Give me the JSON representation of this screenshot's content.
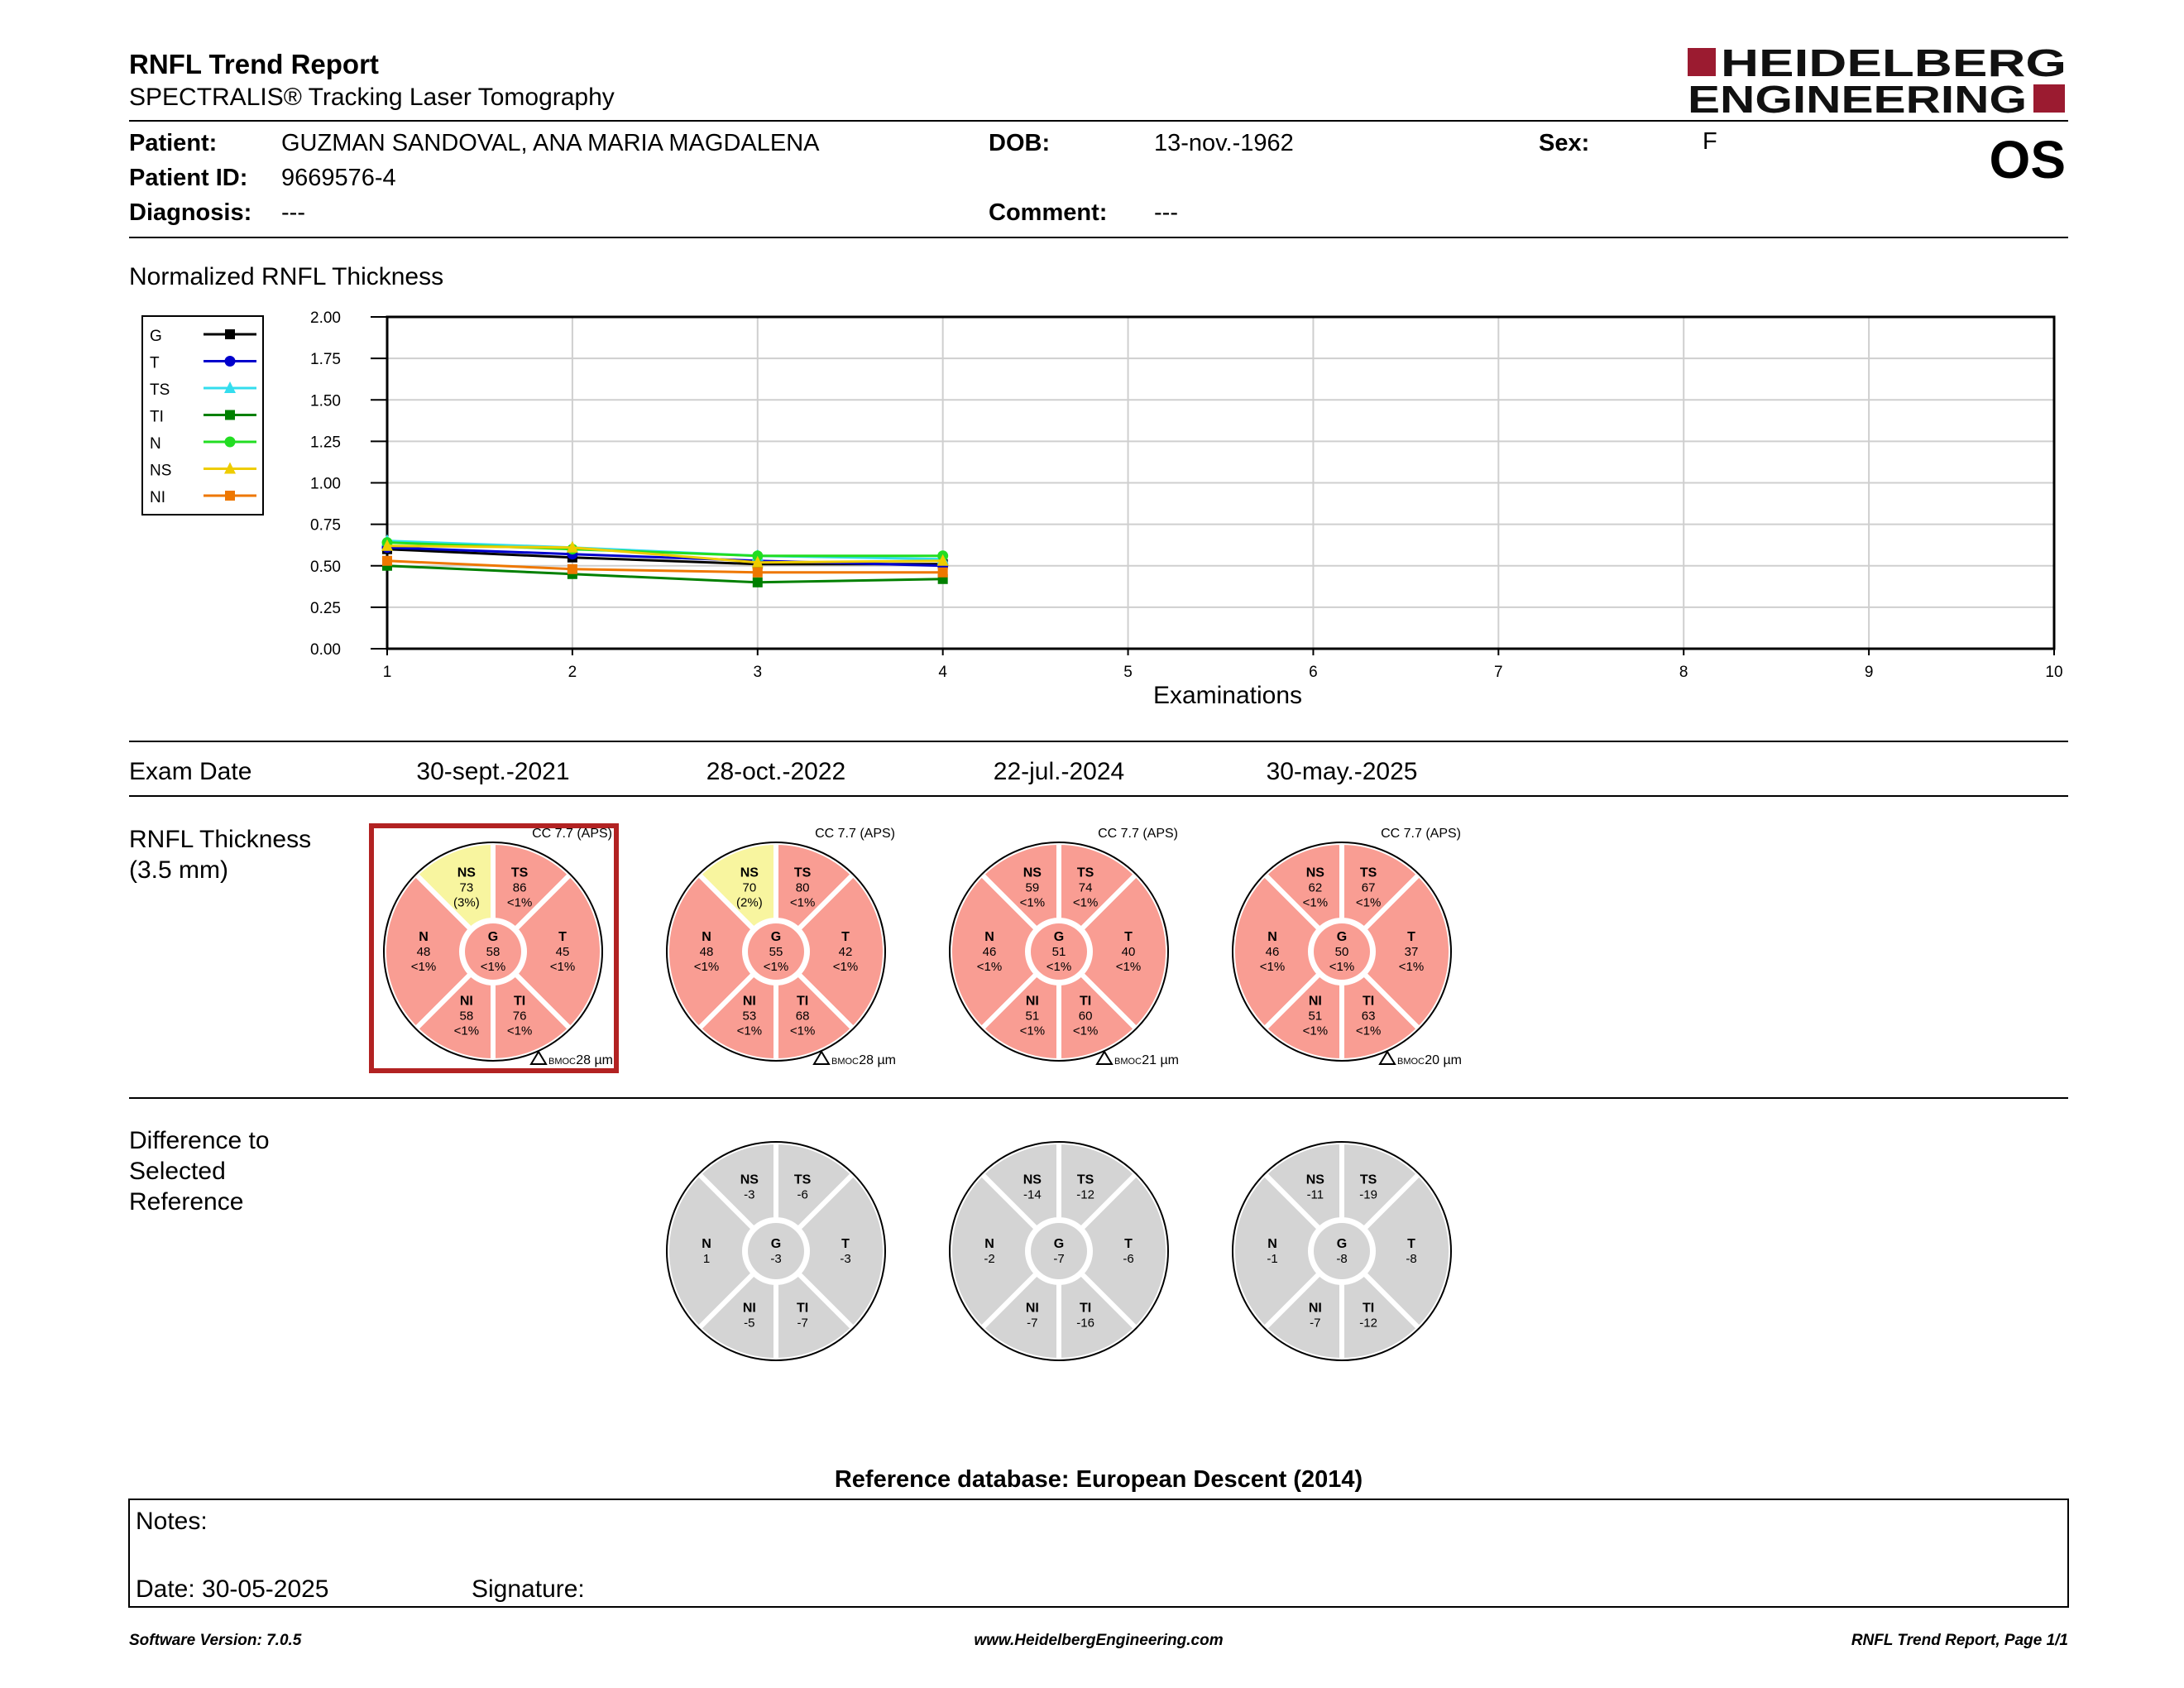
{
  "report": {
    "title": "RNFL Trend Report",
    "subtitle": "SPECTRALIS® Tracking Laser Tomography",
    "eye": "OS"
  },
  "logo": {
    "line1": "HEIDELBERG",
    "line2": "ENGINEERING",
    "color": "#9b1b30"
  },
  "patient": {
    "patient_label": "Patient:",
    "patient_value": "GUZMAN SANDOVAL, ANA MARIA MAGDALENA",
    "dob_label": "DOB:",
    "dob_value": "13-nov.-1962",
    "sex_label": "Sex:",
    "sex_value": "F",
    "id_label": "Patient ID:",
    "id_value": "9669576-4",
    "diagnosis_label": "Diagnosis:",
    "diagnosis_value": "---",
    "comment_label": "Comment:",
    "comment_value": "---"
  },
  "trend": {
    "section_title": "Normalized RNFL Thickness"
  },
  "chart_data": {
    "type": "line",
    "xlabel": "Examinations",
    "ylabel": "",
    "x_ticks": [
      1,
      2,
      3,
      4,
      5,
      6,
      7,
      8,
      9,
      10
    ],
    "y_ticks": [
      "0.00",
      "0.25",
      "0.50",
      "0.75",
      "1.00",
      "1.25",
      "1.50",
      "1.75",
      "2.00"
    ],
    "xlim": [
      1,
      10
    ],
    "ylim": [
      0,
      2
    ],
    "grid": true,
    "legend_position": "left",
    "x": [
      1,
      2,
      3,
      4
    ],
    "series": [
      {
        "name": "G",
        "color": "#000000",
        "marker": "square",
        "values": [
          0.6,
          0.55,
          0.51,
          0.51
        ]
      },
      {
        "name": "T",
        "color": "#0000cc",
        "marker": "circle",
        "values": [
          0.61,
          0.57,
          0.53,
          0.5
        ]
      },
      {
        "name": "TS",
        "color": "#33ddee",
        "marker": "triangle",
        "values": [
          0.65,
          0.61,
          0.56,
          0.54
        ]
      },
      {
        "name": "TI",
        "color": "#008000",
        "marker": "square",
        "values": [
          0.5,
          0.45,
          0.4,
          0.42
        ]
      },
      {
        "name": "N",
        "color": "#22dd22",
        "marker": "circle",
        "values": [
          0.64,
          0.6,
          0.56,
          0.56
        ]
      },
      {
        "name": "NS",
        "color": "#eecc00",
        "marker": "triangle",
        "values": [
          0.62,
          0.61,
          0.52,
          0.53
        ]
      },
      {
        "name": "NI",
        "color": "#ee7700",
        "marker": "square",
        "values": [
          0.53,
          0.48,
          0.46,
          0.46
        ]
      }
    ]
  },
  "exams": {
    "header_label": "Exam Date",
    "dates": [
      "30-sept.-2021",
      "28-oct.-2022",
      "22-jul.-2024",
      "30-may.-2025"
    ]
  },
  "thickness": {
    "label_line1": "RNFL Thickness",
    "label_line2": "(3.5 mm)",
    "circles": [
      {
        "cc": "CC 7.7 (APS)",
        "bmo": "28 µm",
        "selected": true,
        "G": {
          "v": "58",
          "p": "<1%",
          "c": "red"
        },
        "NS": {
          "v": "73",
          "p": "(3%)",
          "c": "yellow"
        },
        "TS": {
          "v": "86",
          "p": "<1%",
          "c": "red"
        },
        "T": {
          "v": "45",
          "p": "<1%",
          "c": "red"
        },
        "TI": {
          "v": "76",
          "p": "<1%",
          "c": "red"
        },
        "NI": {
          "v": "58",
          "p": "<1%",
          "c": "red"
        },
        "N": {
          "v": "48",
          "p": "<1%",
          "c": "red"
        }
      },
      {
        "cc": "CC 7.7 (APS)",
        "bmo": "28 µm",
        "selected": false,
        "G": {
          "v": "55",
          "p": "<1%",
          "c": "red"
        },
        "NS": {
          "v": "70",
          "p": "(2%)",
          "c": "yellow"
        },
        "TS": {
          "v": "80",
          "p": "<1%",
          "c": "red"
        },
        "T": {
          "v": "42",
          "p": "<1%",
          "c": "red"
        },
        "TI": {
          "v": "68",
          "p": "<1%",
          "c": "red"
        },
        "NI": {
          "v": "53",
          "p": "<1%",
          "c": "red"
        },
        "N": {
          "v": "48",
          "p": "<1%",
          "c": "red"
        }
      },
      {
        "cc": "CC 7.7 (APS)",
        "bmo": "21 µm",
        "selected": false,
        "G": {
          "v": "51",
          "p": "<1%",
          "c": "red"
        },
        "NS": {
          "v": "59",
          "p": "<1%",
          "c": "red"
        },
        "TS": {
          "v": "74",
          "p": "<1%",
          "c": "red"
        },
        "T": {
          "v": "40",
          "p": "<1%",
          "c": "red"
        },
        "TI": {
          "v": "60",
          "p": "<1%",
          "c": "red"
        },
        "NI": {
          "v": "51",
          "p": "<1%",
          "c": "red"
        },
        "N": {
          "v": "46",
          "p": "<1%",
          "c": "red"
        }
      },
      {
        "cc": "CC 7.7 (APS)",
        "bmo": "20 µm",
        "selected": false,
        "G": {
          "v": "50",
          "p": "<1%",
          "c": "red"
        },
        "NS": {
          "v": "62",
          "p": "<1%",
          "c": "red"
        },
        "TS": {
          "v": "67",
          "p": "<1%",
          "c": "red"
        },
        "T": {
          "v": "37",
          "p": "<1%",
          "c": "red"
        },
        "TI": {
          "v": "63",
          "p": "<1%",
          "c": "red"
        },
        "NI": {
          "v": "51",
          "p": "<1%",
          "c": "red"
        },
        "N": {
          "v": "46",
          "p": "<1%",
          "c": "red"
        }
      }
    ],
    "bmo_prefix": "BMOC"
  },
  "difference": {
    "label_lines": [
      "Difference to",
      "Selected",
      "Reference"
    ],
    "circles": [
      null,
      {
        "G": "-3",
        "NS": "-3",
        "TS": "-6",
        "T": "-3",
        "TI": "-7",
        "NI": "-5",
        "N": "1"
      },
      {
        "G": "-7",
        "NS": "-14",
        "TS": "-12",
        "T": "-6",
        "TI": "-16",
        "NI": "-7",
        "N": "-2"
      },
      {
        "G": "-8",
        "NS": "-11",
        "TS": "-19",
        "T": "-8",
        "TI": "-12",
        "NI": "-7",
        "N": "-1"
      }
    ]
  },
  "colors": {
    "red": "#f99d93",
    "yellow": "#f8f59f",
    "gray": "#d4d4d4",
    "selected_border": "#b22222"
  },
  "reference_db": "Reference database: European Descent (2014)",
  "notes": {
    "notes_label": "Notes:",
    "date_label": "Date: 30-05-2025",
    "signature_label": "Signature:"
  },
  "footer": {
    "software": "Software Version: 7.0.5",
    "website": "www.HeidelbergEngineering.com",
    "page": "RNFL Trend Report, Page 1/1"
  }
}
